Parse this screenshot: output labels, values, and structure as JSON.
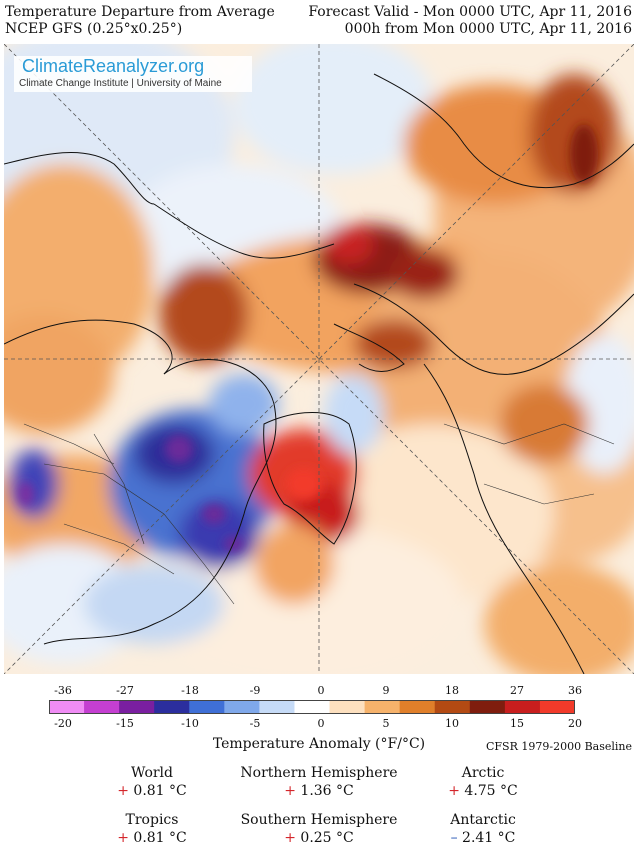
{
  "header": {
    "title": "Temperature Departure from Average",
    "model": "NCEP GFS (0.25°x0.25°)",
    "valid": "Forecast Valid - Mon 0000 UTC, Apr 11, 2016",
    "lead": "000h from Mon 0000 UTC, Apr 11, 2016"
  },
  "logo": {
    "main": "ClimateReanalyzer.org",
    "sub": "Climate Change Institute | University of Maine"
  },
  "colorbar": {
    "f_ticks": [
      "-36",
      "-27",
      "-18",
      "-9",
      "0",
      "9",
      "18",
      "27",
      "36"
    ],
    "c_ticks": [
      "-20",
      "-15",
      "-10",
      "-5",
      "0",
      "5",
      "10",
      "15",
      "20"
    ],
    "title": "Temperature Anomaly (°F/°C)",
    "baseline": "CFSR 1979-2000 Baseline",
    "colors": [
      "#f08cf5",
      "#c43fd1",
      "#7a1fa0",
      "#2b2e9e",
      "#3f6fd6",
      "#7fa8ea",
      "#c6dbf7",
      "#ffffff",
      "#fde0bf",
      "#f6b26b",
      "#e07f2a",
      "#b34a13",
      "#7f1d0e",
      "#c81e1e",
      "#f23a2a"
    ]
  },
  "stats": {
    "world": {
      "label": "World",
      "sign": "+",
      "value": "0.81 °C"
    },
    "nh": {
      "label": "Northern Hemisphere",
      "sign": "+",
      "value": "1.36 °C"
    },
    "arctic": {
      "label": "Arctic",
      "sign": "+",
      "value": "4.75 °C"
    },
    "tropics": {
      "label": "Tropics",
      "sign": "+",
      "value": "0.81 °C"
    },
    "sh": {
      "label": "Southern Hemisphere",
      "sign": "+",
      "value": "0.25 °C"
    },
    "antarctic": {
      "label": "Antarctic",
      "sign": "–",
      "value": "2.41 °C"
    }
  }
}
